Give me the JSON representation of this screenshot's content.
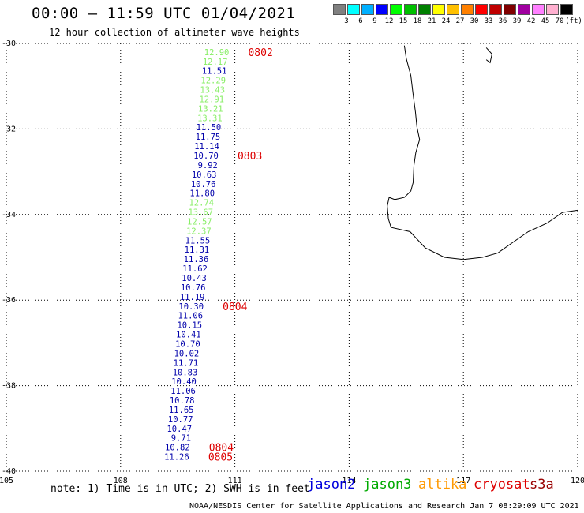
{
  "title": "00:00 – 11:59 UTC 01/04/2021",
  "subtitle": "12 hour collection of altimeter wave heights",
  "legend": {
    "colors": [
      "#808080",
      "#00ffff",
      "#00b0ff",
      "#0000ff",
      "#00ff00",
      "#00c000",
      "#008000",
      "#ffff00",
      "#ffc000",
      "#ff8000",
      "#ff0000",
      "#c00000",
      "#800000",
      "#a000a0",
      "#ff80ff",
      "#ffb0d0",
      "#000000"
    ],
    "labels": [
      "3",
      "6",
      "9",
      "12",
      "15",
      "18",
      "21",
      "24",
      "27",
      "30",
      "33",
      "36",
      "39",
      "42",
      "45",
      "70",
      "(ft)"
    ]
  },
  "axes": {
    "lon_ticks": [
      "105",
      "108",
      "111",
      "114",
      "117",
      "120"
    ],
    "lat_ticks": [
      "-30",
      "-32",
      "-34",
      "-36",
      "-38",
      "-40"
    ],
    "lon_range": [
      105,
      120
    ],
    "lat_range": [
      -30,
      -40
    ]
  },
  "satellite_colors": {
    "jason2": "#0000aa",
    "jason3": "#88ee66",
    "time": "#dd0000"
  },
  "track": [
    {
      "v": "12.90",
      "c": "jason3",
      "lat": -30.2,
      "lon": 110.85
    },
    {
      "v": "12.17",
      "c": "jason3",
      "lat": -30.42,
      "lon": 110.81
    },
    {
      "v": "11.51",
      "c": "jason2",
      "lat": -30.64,
      "lon": 110.79
    },
    {
      "v": "12.29",
      "c": "jason3",
      "lat": -30.86,
      "lon": 110.76
    },
    {
      "v": "13.43",
      "c": "jason3",
      "lat": -31.08,
      "lon": 110.74
    },
    {
      "v": "12.91",
      "c": "jason3",
      "lat": -31.3,
      "lon": 110.72
    },
    {
      "v": "13.21",
      "c": "jason3",
      "lat": -31.52,
      "lon": 110.69
    },
    {
      "v": "13.31",
      "c": "jason3",
      "lat": -31.74,
      "lon": 110.67
    },
    {
      "v": "11.50",
      "c": "jason2",
      "lat": -31.96,
      "lon": 110.64
    },
    {
      "v": "11.75",
      "c": "jason2",
      "lat": -32.18,
      "lon": 110.62
    },
    {
      "v": "11.14",
      "c": "jason2",
      "lat": -32.4,
      "lon": 110.59
    },
    {
      "v": "10.70",
      "c": "jason2",
      "lat": -32.62,
      "lon": 110.57
    },
    {
      "v": "9.92",
      "c": "jason2",
      "lat": -32.84,
      "lon": 110.55
    },
    {
      "v": "10.63",
      "c": "jason2",
      "lat": -33.06,
      "lon": 110.52
    },
    {
      "v": "10.76",
      "c": "jason2",
      "lat": -33.28,
      "lon": 110.5
    },
    {
      "v": "11.80",
      "c": "jason2",
      "lat": -33.5,
      "lon": 110.47
    },
    {
      "v": "12.74",
      "c": "jason3",
      "lat": -33.72,
      "lon": 110.45
    },
    {
      "v": "13.67",
      "c": "jason3",
      "lat": -33.94,
      "lon": 110.43
    },
    {
      "v": "12.57",
      "c": "jason3",
      "lat": -34.16,
      "lon": 110.4
    },
    {
      "v": "12.37",
      "c": "jason3",
      "lat": -34.38,
      "lon": 110.38
    },
    {
      "v": "11.55",
      "c": "jason2",
      "lat": -34.6,
      "lon": 110.35
    },
    {
      "v": "11.31",
      "c": "jason2",
      "lat": -34.82,
      "lon": 110.33
    },
    {
      "v": "11.36",
      "c": "jason2",
      "lat": -35.04,
      "lon": 110.31
    },
    {
      "v": "11.62",
      "c": "jason2",
      "lat": -35.26,
      "lon": 110.28
    },
    {
      "v": "10.43",
      "c": "jason2",
      "lat": -35.48,
      "lon": 110.26
    },
    {
      "v": "10.76",
      "c": "jason2",
      "lat": -35.7,
      "lon": 110.23
    },
    {
      "v": "11.19",
      "c": "jason2",
      "lat": -35.92,
      "lon": 110.21
    },
    {
      "v": "10.30",
      "c": "jason2",
      "lat": -36.14,
      "lon": 110.18
    },
    {
      "v": "11.06",
      "c": "jason2",
      "lat": -36.36,
      "lon": 110.16
    },
    {
      "v": "10.15",
      "c": "jason2",
      "lat": -36.58,
      "lon": 110.14
    },
    {
      "v": "10.41",
      "c": "jason2",
      "lat": -36.8,
      "lon": 110.11
    },
    {
      "v": "10.70",
      "c": "jason2",
      "lat": -37.02,
      "lon": 110.09
    },
    {
      "v": "10.02",
      "c": "jason2",
      "lat": -37.24,
      "lon": 110.06
    },
    {
      "v": "11.71",
      "c": "jason2",
      "lat": -37.46,
      "lon": 110.04
    },
    {
      "v": "10.83",
      "c": "jason2",
      "lat": -37.68,
      "lon": 110.02
    },
    {
      "v": "10.40",
      "c": "jason2",
      "lat": -37.9,
      "lon": 109.99
    },
    {
      "v": "11.06",
      "c": "jason2",
      "lat": -38.12,
      "lon": 109.97
    },
    {
      "v": "10.78",
      "c": "jason2",
      "lat": -38.34,
      "lon": 109.94
    },
    {
      "v": "11.65",
      "c": "jason2",
      "lat": -38.56,
      "lon": 109.92
    },
    {
      "v": "10.77",
      "c": "jason2",
      "lat": -38.78,
      "lon": 109.9
    },
    {
      "v": "10.47",
      "c": "jason2",
      "lat": -39.0,
      "lon": 109.87
    },
    {
      "v": "9.71",
      "c": "jason2",
      "lat": -39.22,
      "lon": 109.85
    },
    {
      "v": "10.82",
      "c": "jason2",
      "lat": -39.44,
      "lon": 109.82
    },
    {
      "v": "11.26",
      "c": "jason2",
      "lat": -39.66,
      "lon": 109.8
    }
  ],
  "times": [
    {
      "t": "0802",
      "lat": -30.2,
      "lon": 111.35
    },
    {
      "t": "0803",
      "lat": -32.62,
      "lon": 111.07
    },
    {
      "t": "0804",
      "lat": -36.14,
      "lon": 110.68
    },
    {
      "t": "0804",
      "lat": -39.44,
      "lon": 110.32
    },
    {
      "t": "0805",
      "lat": -39.66,
      "lon": 110.3
    }
  ],
  "coastline": [
    [
      115.45,
      -30.05
    ],
    [
      115.5,
      -30.35
    ],
    [
      115.62,
      -30.75
    ],
    [
      115.68,
      -31.2
    ],
    [
      115.74,
      -31.6
    ],
    [
      115.78,
      -31.95
    ],
    [
      115.85,
      -32.25
    ],
    [
      115.75,
      -32.55
    ],
    [
      115.7,
      -32.85
    ],
    [
      115.68,
      -33.25
    ],
    [
      115.62,
      -33.45
    ],
    [
      115.45,
      -33.6
    ],
    [
      115.2,
      -33.65
    ],
    [
      115.05,
      -33.6
    ],
    [
      115.0,
      -33.8
    ],
    [
      115.03,
      -34.1
    ],
    [
      115.1,
      -34.3
    ],
    [
      115.6,
      -34.4
    ],
    [
      116.0,
      -34.78
    ],
    [
      116.5,
      -35.0
    ],
    [
      117.0,
      -35.05
    ],
    [
      117.5,
      -35.0
    ],
    [
      117.9,
      -34.9
    ],
    [
      118.3,
      -34.65
    ],
    [
      118.7,
      -34.4
    ],
    [
      119.2,
      -34.2
    ],
    [
      119.6,
      -33.95
    ],
    [
      120.0,
      -33.9
    ]
  ],
  "island": [
    [
      117.6,
      -30.1
    ],
    [
      117.75,
      -30.25
    ],
    [
      117.7,
      -30.45
    ],
    [
      117.6,
      -30.38
    ]
  ],
  "note": "note: 1) Time is in UTC; 2) SWH is in feet",
  "satellites": [
    {
      "name": "jason2",
      "color": "#0000dd"
    },
    {
      "name": "jason3",
      "color": "#00aa00"
    },
    {
      "name": "altika",
      "color": "#ff9900"
    },
    {
      "name": "cryosat",
      "color": "#dd0000"
    },
    {
      "name": "s3a",
      "color": "#990000"
    }
  ],
  "footer": "NOAA/NESDIS Center for Satellite Applications and Research   Jan  7 08:29:09 UTC 2021"
}
